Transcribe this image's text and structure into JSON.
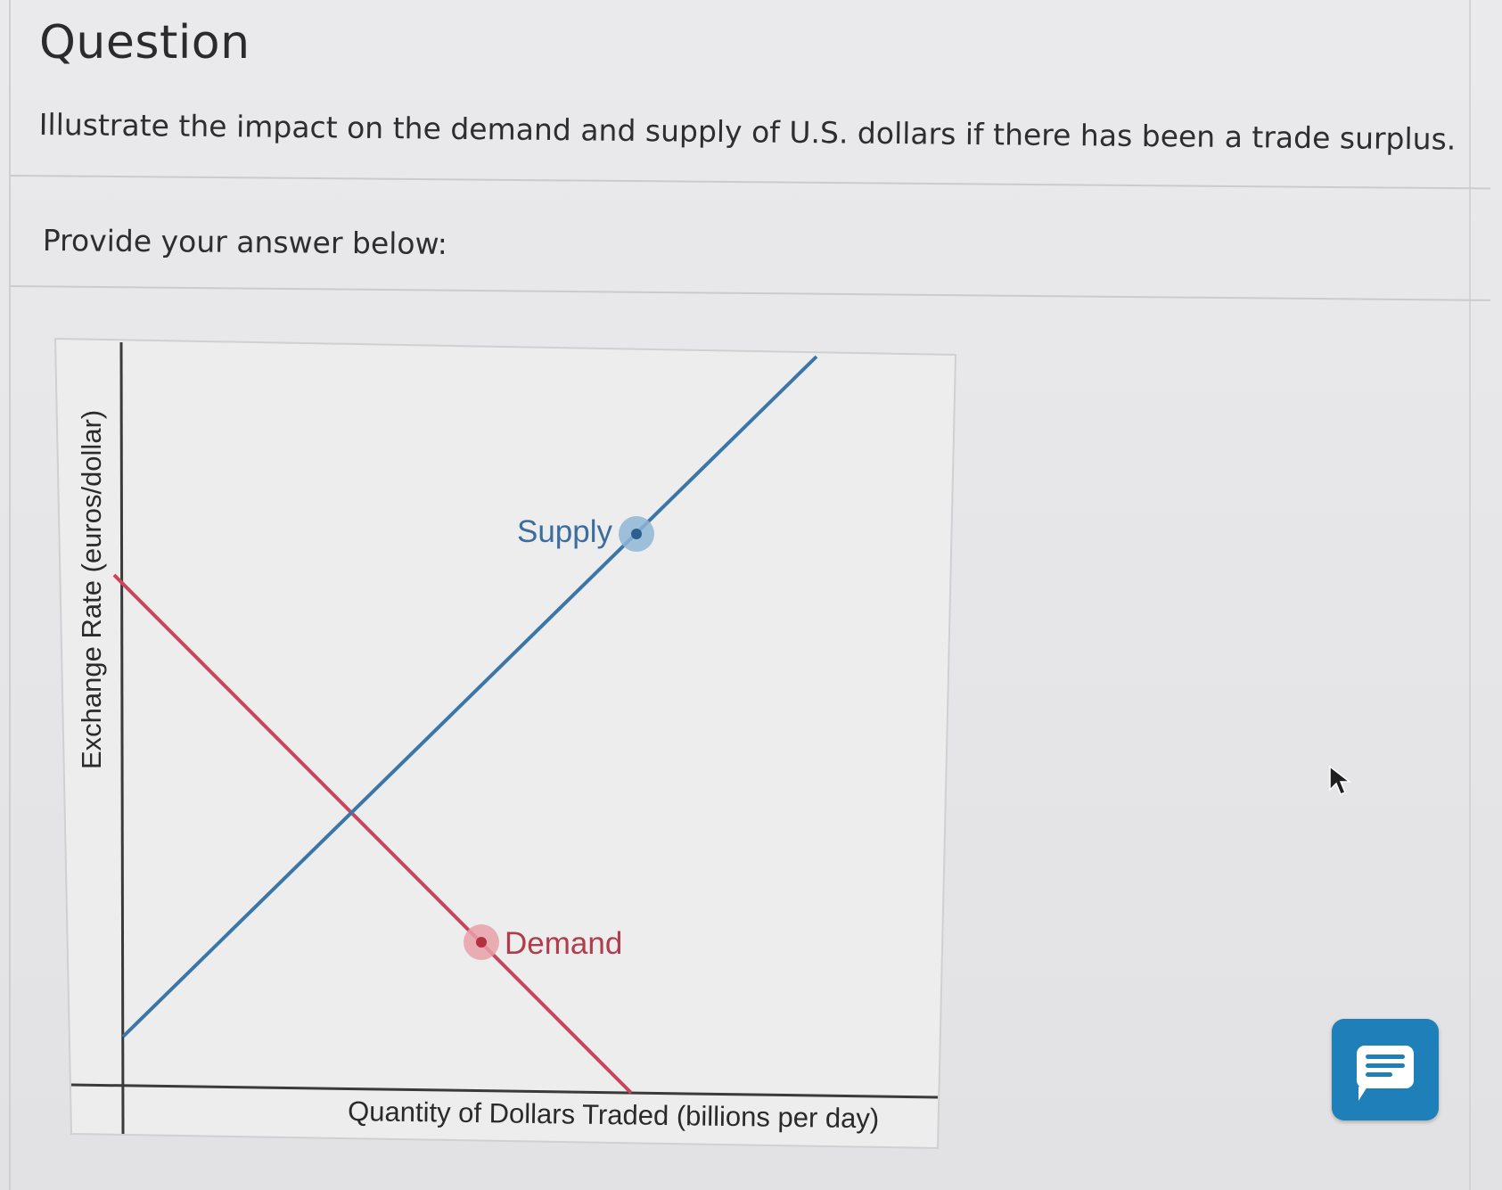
{
  "header": {
    "title": "Question"
  },
  "question": {
    "text": "Illustrate the impact on the demand and supply of U.S. dollars if there has been a trade surplus."
  },
  "answer": {
    "prompt": "Provide your answer below:"
  },
  "graph": {
    "y_axis_label": "Exchange Rate (euros/dollar)",
    "x_axis_label": "Quantity of Dollars Traded (billions per day)",
    "supply_label": "Supply",
    "demand_label": "Demand",
    "supply_color": "#3b76a8",
    "demand_color": "#c8465a"
  },
  "chat": {
    "icon": "chat-icon",
    "color": "#1f7fb8"
  }
}
